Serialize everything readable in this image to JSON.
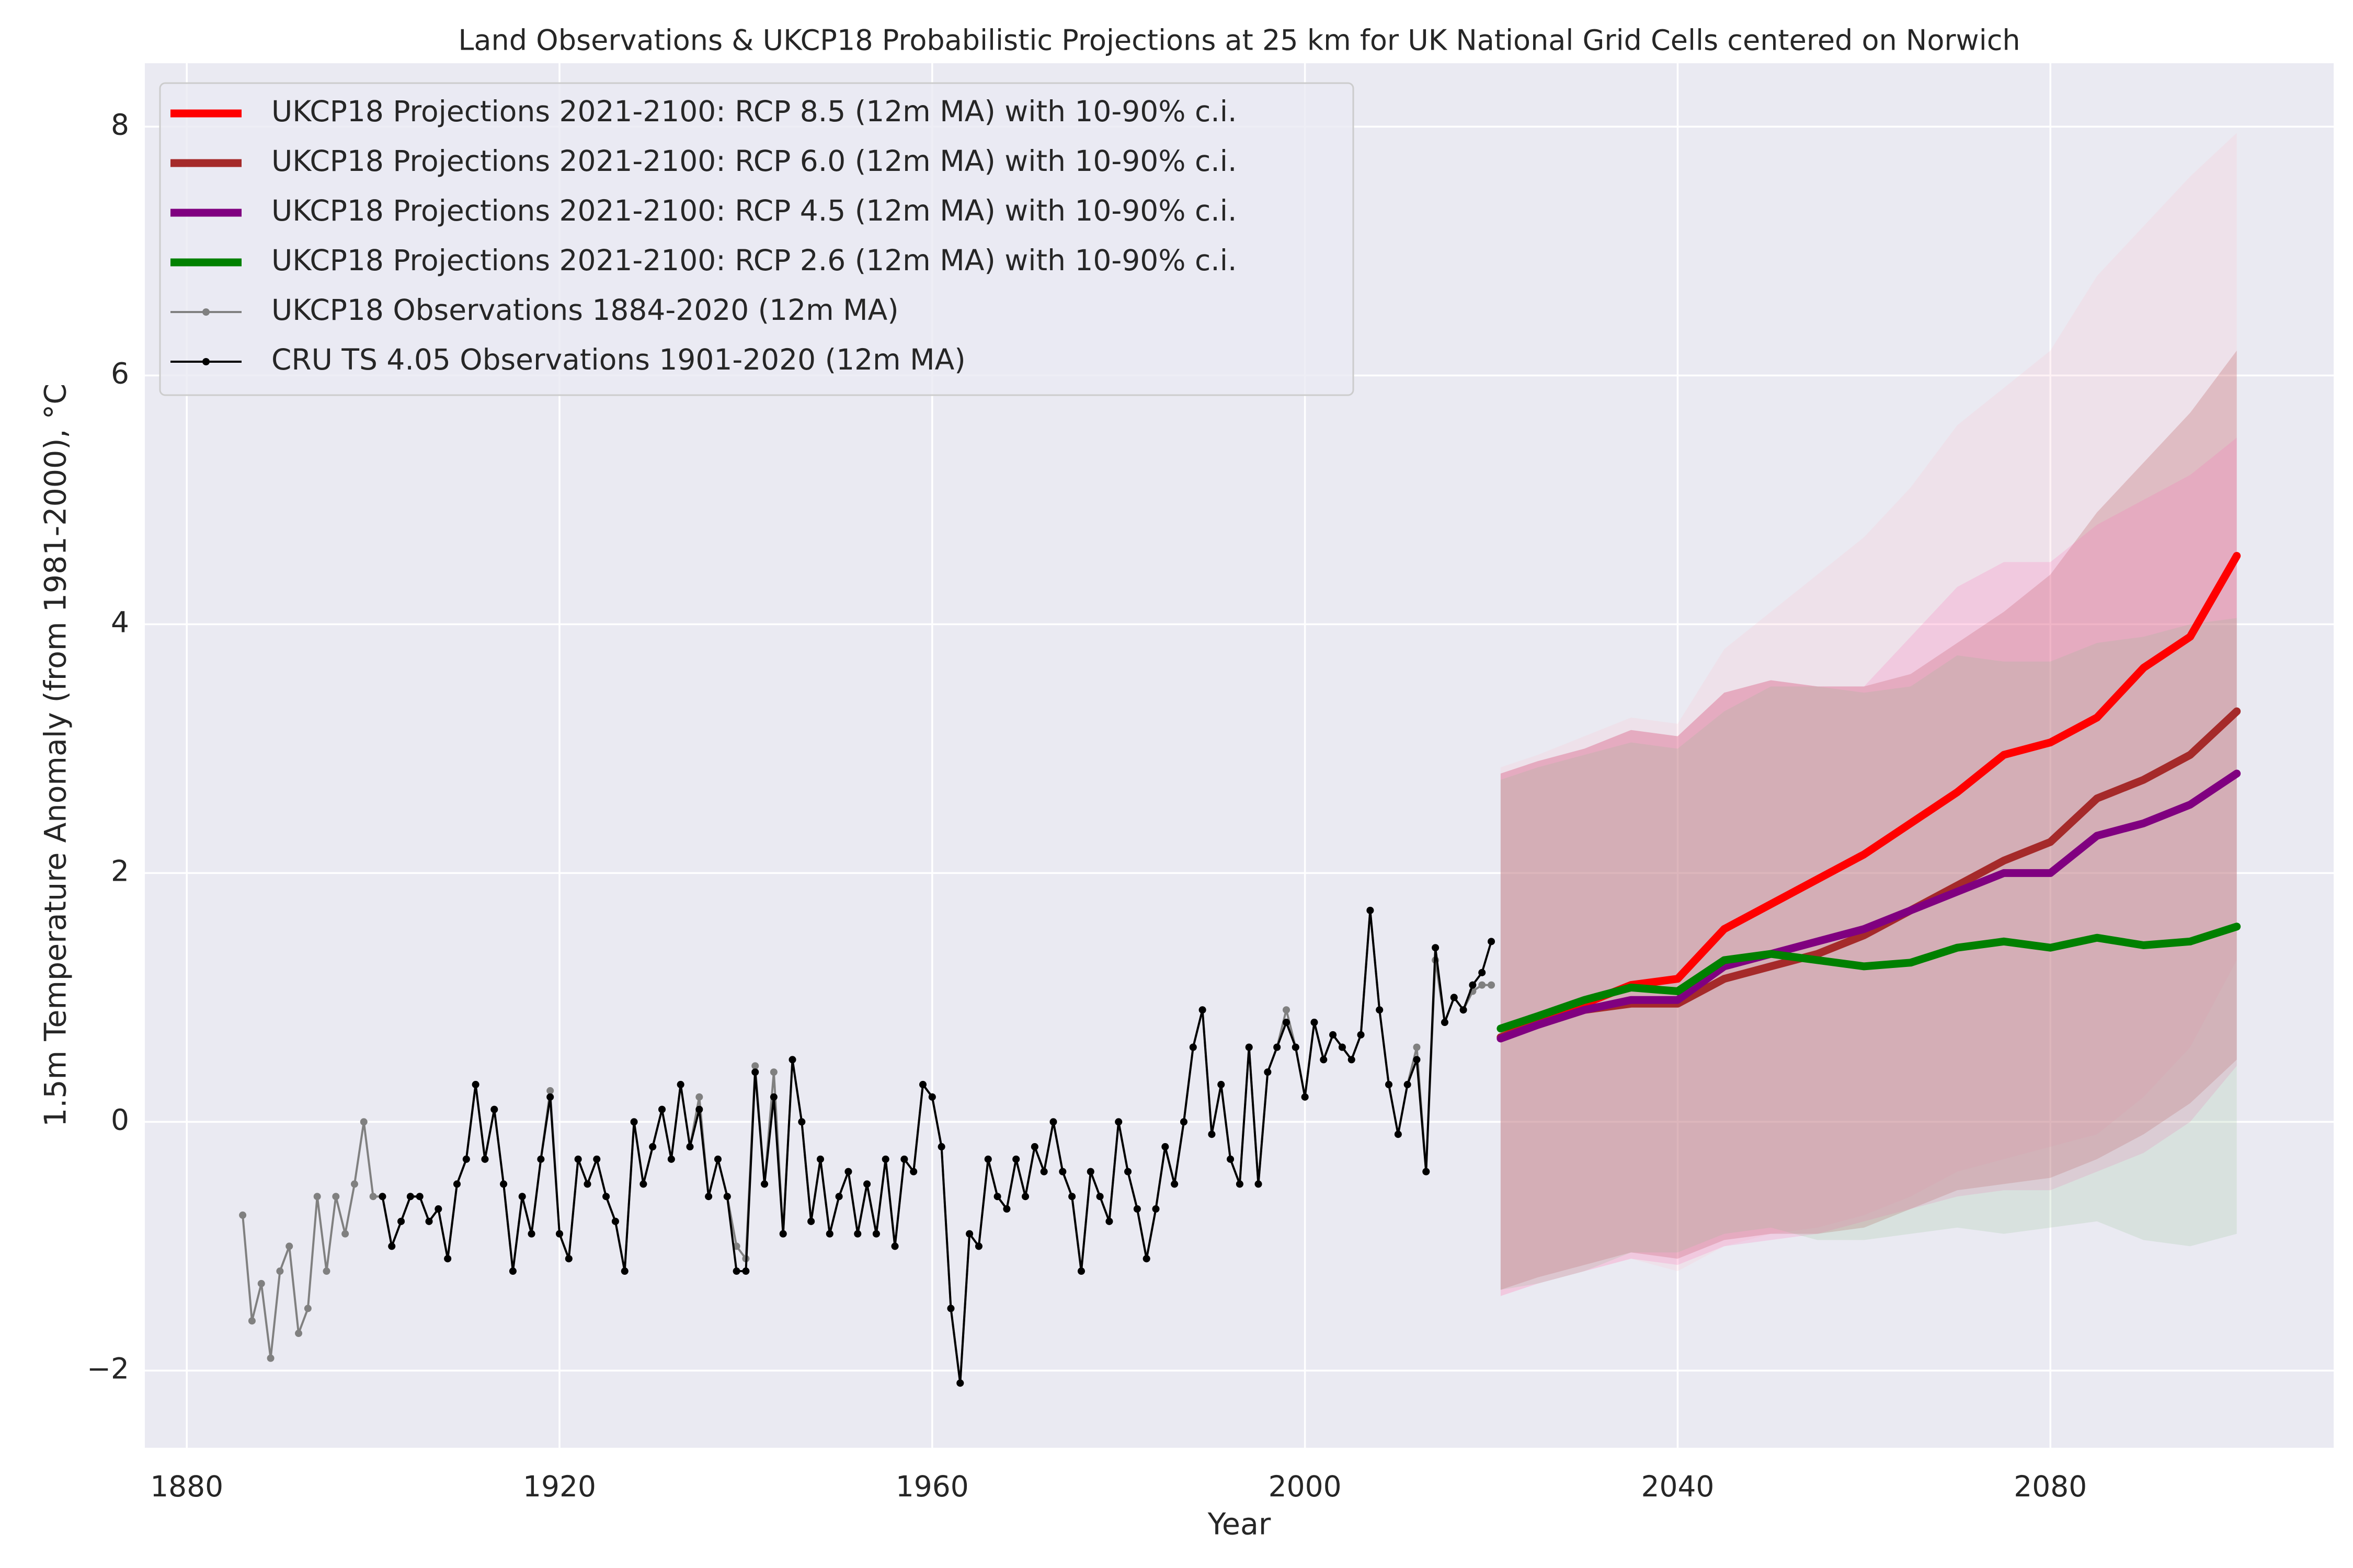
{
  "chart_data": {
    "type": "line",
    "title": "Land Observations & UKCP18 Probabilistic Projections at 25 km for UK National Grid Cells centered on Norwich",
    "xlabel": "Year",
    "ylabel": "1.5m Temperature Anomaly (from 1981-2000), °C",
    "xlim": [
      1875.5,
      2110.4
    ],
    "ylim": [
      -2.62,
      8.51
    ],
    "xticks": [
      1880,
      1920,
      1960,
      2000,
      2040,
      2080
    ],
    "yticks": [
      {
        "value": -2,
        "label": "−2"
      },
      0,
      2,
      4,
      6,
      8
    ],
    "grid": true,
    "legend": "upper left",
    "series": [
      {
        "name": "UKCP18 Projections 2021-2100: RCP 8.5 (12m MA) with 10-90% c.i.",
        "color": "#ff0000",
        "band_color": "#ffc0cb",
        "marker": false,
        "x": [
          2021,
          2025,
          2030,
          2035,
          2040,
          2045,
          2050,
          2055,
          2060,
          2065,
          2070,
          2075,
          2080,
          2085,
          2090,
          2095,
          2100
        ],
        "values": [
          0.68,
          0.8,
          0.95,
          1.1,
          1.15,
          1.55,
          1.75,
          1.95,
          2.15,
          2.4,
          2.65,
          2.95,
          3.05,
          3.25,
          3.65,
          3.9,
          4.55
        ],
        "lower": [
          -1.4,
          -1.3,
          -1.2,
          -1.1,
          -1.2,
          -1.0,
          -0.9,
          -0.85,
          -0.75,
          -0.6,
          -0.4,
          -0.3,
          -0.2,
          -0.1,
          0.2,
          0.6,
          1.3
        ],
        "upper": [
          2.85,
          2.95,
          3.1,
          3.25,
          3.2,
          3.8,
          4.1,
          4.4,
          4.7,
          5.1,
          5.6,
          5.9,
          6.2,
          6.8,
          7.2,
          7.6,
          7.95
        ]
      },
      {
        "name": "UKCP18 Projections 2021-2100: RCP 6.0 (12m MA) with 10-90% c.i.",
        "color": "#a52a2a",
        "band_color": "#a52a2a",
        "marker": false,
        "x": [
          2021,
          2025,
          2030,
          2035,
          2040,
          2045,
          2050,
          2055,
          2060,
          2065,
          2070,
          2075,
          2080,
          2085,
          2090,
          2095,
          2100
        ],
        "values": [
          0.68,
          0.78,
          0.9,
          0.95,
          0.95,
          1.15,
          1.25,
          1.35,
          1.5,
          1.7,
          1.9,
          2.1,
          2.25,
          2.6,
          2.75,
          2.95,
          3.3
        ],
        "lower": [
          -1.35,
          -1.25,
          -1.15,
          -1.05,
          -1.1,
          -0.95,
          -0.9,
          -0.9,
          -0.85,
          -0.7,
          -0.55,
          -0.5,
          -0.45,
          -0.3,
          -0.1,
          0.15,
          0.5
        ],
        "upper": [
          2.8,
          2.9,
          3.0,
          3.15,
          3.1,
          3.45,
          3.55,
          3.5,
          3.5,
          3.6,
          3.85,
          4.1,
          4.4,
          4.9,
          5.3,
          5.7,
          6.2
        ]
      },
      {
        "name": "UKCP18 Projections 2021-2100: RCP 4.5 (12m MA) with 10-90% c.i.",
        "color": "#800080",
        "band_color": "#ff69b4",
        "marker": false,
        "x": [
          2021,
          2025,
          2030,
          2035,
          2040,
          2045,
          2050,
          2055,
          2060,
          2065,
          2070,
          2075,
          2080,
          2085,
          2090,
          2095,
          2100
        ],
        "values": [
          0.67,
          0.78,
          0.9,
          0.98,
          0.98,
          1.25,
          1.35,
          1.45,
          1.55,
          1.7,
          1.85,
          2.0,
          2.0,
          2.3,
          2.4,
          2.55,
          2.8
        ],
        "lower": [
          -1.4,
          -1.3,
          -1.2,
          -1.1,
          -1.15,
          -1.0,
          -0.95,
          -0.9,
          -0.8,
          -0.7,
          -0.6,
          -0.55,
          -0.55,
          -0.4,
          -0.25,
          0.0,
          0.45
        ],
        "upper": [
          2.8,
          2.9,
          3.0,
          3.15,
          3.1,
          3.45,
          3.55,
          3.5,
          3.5,
          3.9,
          4.3,
          4.5,
          4.5,
          4.8,
          5.0,
          5.2,
          5.5
        ]
      },
      {
        "name": "UKCP18 Projections 2021-2100: RCP 2.6 (12m MA) with 10-90% c.i.",
        "color": "#008000",
        "band_color": "#8fbc8f",
        "marker": false,
        "x": [
          2021,
          2025,
          2030,
          2035,
          2040,
          2045,
          2050,
          2055,
          2060,
          2065,
          2070,
          2075,
          2080,
          2085,
          2090,
          2095,
          2100
        ],
        "values": [
          0.75,
          0.85,
          0.98,
          1.08,
          1.05,
          1.3,
          1.35,
          1.3,
          1.25,
          1.28,
          1.4,
          1.45,
          1.4,
          1.48,
          1.42,
          1.45,
          1.57
        ],
        "lower": [
          -1.35,
          -1.3,
          -1.2,
          -1.05,
          -1.05,
          -0.9,
          -0.85,
          -0.95,
          -0.95,
          -0.9,
          -0.85,
          -0.9,
          -0.85,
          -0.8,
          -0.95,
          -1.0,
          -0.9
        ],
        "upper": [
          2.75,
          2.85,
          2.95,
          3.05,
          3.0,
          3.3,
          3.5,
          3.5,
          3.45,
          3.5,
          3.75,
          3.7,
          3.7,
          3.85,
          3.9,
          4.0,
          4.05
        ]
      },
      {
        "name": "UKCP18 Observations 1884-2020 (12m MA)",
        "color": "#808080",
        "marker": true,
        "x": [
          1886,
          1887,
          1888,
          1889,
          1890,
          1891,
          1892,
          1893,
          1894,
          1895,
          1896,
          1897,
          1898,
          1899,
          1900,
          1901,
          1902,
          1903,
          1904,
          1905,
          1906,
          1907,
          1908,
          1909,
          1910,
          1911,
          1912,
          1913,
          1914,
          1915,
          1916,
          1917,
          1918,
          1919,
          1920,
          1921,
          1922,
          1923,
          1924,
          1925,
          1926,
          1927,
          1928,
          1929,
          1930,
          1931,
          1932,
          1933,
          1934,
          1935,
          1936,
          1937,
          1938,
          1939,
          1940,
          1941,
          1942,
          1943,
          1944,
          1945,
          1946,
          1947,
          1948,
          1949,
          1950,
          1951,
          1952,
          1953,
          1954,
          1955,
          1956,
          1957,
          1958,
          1959,
          1960,
          1961,
          1962,
          1963,
          1964,
          1965,
          1966,
          1967,
          1968,
          1969,
          1970,
          1971,
          1972,
          1973,
          1974,
          1975,
          1976,
          1977,
          1978,
          1979,
          1980,
          1981,
          1982,
          1983,
          1984,
          1985,
          1986,
          1987,
          1988,
          1989,
          1990,
          1991,
          1992,
          1993,
          1994,
          1995,
          1996,
          1997,
          1998,
          1999,
          2000,
          2001,
          2002,
          2003,
          2004,
          2005,
          2006,
          2007,
          2008,
          2009,
          2010,
          2011,
          2012,
          2013,
          2014,
          2015,
          2016,
          2017,
          2018,
          2019,
          2020
        ],
        "values": [
          -0.75,
          -1.6,
          -1.3,
          -1.9,
          -1.2,
          -1.0,
          -1.7,
          -1.5,
          -0.6,
          -1.2,
          -0.6,
          -0.9,
          -0.5,
          0.0,
          -0.6,
          -0.6,
          -1.0,
          -0.8,
          -0.6,
          -0.6,
          -0.8,
          -0.7,
          -1.1,
          -0.5,
          -0.3,
          0.3,
          -0.3,
          0.1,
          -0.5,
          -1.2,
          -0.6,
          -0.9,
          -0.3,
          0.25,
          -0.9,
          -1.1,
          -0.3,
          -0.5,
          -0.3,
          -0.6,
          -0.8,
          -1.2,
          0.0,
          -0.5,
          -0.2,
          0.1,
          -0.3,
          0.3,
          -0.2,
          0.2,
          -0.6,
          -0.3,
          -0.6,
          -1.0,
          -1.1,
          0.45,
          -0.5,
          0.4,
          -0.9,
          0.5,
          0.0,
          -0.8,
          -0.3,
          -0.9,
          -0.6,
          -0.4,
          -0.9,
          -0.5,
          -0.9,
          -0.3,
          -1.0,
          -0.3,
          -0.4,
          0.3,
          0.2,
          -0.2,
          -1.5,
          -2.1,
          -0.9,
          -1.0,
          -0.3,
          -0.6,
          -0.7,
          -0.3,
          -0.6,
          -0.2,
          -0.4,
          0.0,
          -0.4,
          -0.6,
          -1.2,
          -0.4,
          -0.6,
          -0.8,
          0.0,
          -0.4,
          -0.7,
          -1.1,
          -0.7,
          -0.2,
          -0.5,
          0.0,
          0.6,
          0.9,
          -0.1,
          0.3,
          -0.3,
          -0.5,
          0.6,
          -0.5,
          0.4,
          0.6,
          0.9,
          0.6,
          0.2,
          0.8,
          0.5,
          0.7,
          0.6,
          0.5,
          0.7,
          1.7,
          0.9,
          0.3,
          -0.1,
          0.3,
          0.6,
          -0.4,
          1.3,
          0.8,
          1.0,
          0.9,
          1.05,
          1.1,
          1.1
        ]
      },
      {
        "name": "CRU TS 4.05 Observations 1901-2020 (12m MA)",
        "color": "#000000",
        "marker": true,
        "x": [
          1901,
          1902,
          1903,
          1904,
          1905,
          1906,
          1907,
          1908,
          1909,
          1910,
          1911,
          1912,
          1913,
          1914,
          1915,
          1916,
          1917,
          1918,
          1919,
          1920,
          1921,
          1922,
          1923,
          1924,
          1925,
          1926,
          1927,
          1928,
          1929,
          1930,
          1931,
          1932,
          1933,
          1934,
          1935,
          1936,
          1937,
          1938,
          1939,
          1940,
          1941,
          1942,
          1943,
          1944,
          1945,
          1946,
          1947,
          1948,
          1949,
          1950,
          1951,
          1952,
          1953,
          1954,
          1955,
          1956,
          1957,
          1958,
          1959,
          1960,
          1961,
          1962,
          1963,
          1964,
          1965,
          1966,
          1967,
          1968,
          1969,
          1970,
          1971,
          1972,
          1973,
          1974,
          1975,
          1976,
          1977,
          1978,
          1979,
          1980,
          1981,
          1982,
          1983,
          1984,
          1985,
          1986,
          1987,
          1988,
          1989,
          1990,
          1991,
          1992,
          1993,
          1994,
          1995,
          1996,
          1997,
          1998,
          1999,
          2000,
          2001,
          2002,
          2003,
          2004,
          2005,
          2006,
          2007,
          2008,
          2009,
          2010,
          2011,
          2012,
          2013,
          2014,
          2015,
          2016,
          2017,
          2018,
          2019,
          2020
        ],
        "values": [
          -0.6,
          -1.0,
          -0.8,
          -0.6,
          -0.6,
          -0.8,
          -0.7,
          -1.1,
          -0.5,
          -0.3,
          0.3,
          -0.3,
          0.1,
          -0.5,
          -1.2,
          -0.6,
          -0.9,
          -0.3,
          0.2,
          -0.9,
          -1.1,
          -0.3,
          -0.5,
          -0.3,
          -0.6,
          -0.8,
          -1.2,
          0.0,
          -0.5,
          -0.2,
          0.1,
          -0.3,
          0.3,
          -0.2,
          0.1,
          -0.6,
          -0.3,
          -0.6,
          -1.2,
          -1.2,
          0.4,
          -0.5,
          0.2,
          -0.9,
          0.5,
          0.0,
          -0.8,
          -0.3,
          -0.9,
          -0.6,
          -0.4,
          -0.9,
          -0.5,
          -0.9,
          -0.3,
          -1.0,
          -0.3,
          -0.4,
          0.3,
          0.2,
          -0.2,
          -1.5,
          -2.1,
          -0.9,
          -1.0,
          -0.3,
          -0.6,
          -0.7,
          -0.3,
          -0.6,
          -0.2,
          -0.4,
          0.0,
          -0.4,
          -0.6,
          -1.2,
          -0.4,
          -0.6,
          -0.8,
          0.0,
          -0.4,
          -0.7,
          -1.1,
          -0.7,
          -0.2,
          -0.5,
          0.0,
          0.6,
          0.9,
          -0.1,
          0.3,
          -0.3,
          -0.5,
          0.6,
          -0.5,
          0.4,
          0.6,
          0.8,
          0.6,
          0.2,
          0.8,
          0.5,
          0.7,
          0.6,
          0.5,
          0.7,
          1.7,
          0.9,
          0.3,
          -0.1,
          0.3,
          0.5,
          -0.4,
          1.4,
          0.8,
          1.0,
          0.9,
          1.1,
          1.2,
          1.45
        ]
      }
    ]
  }
}
